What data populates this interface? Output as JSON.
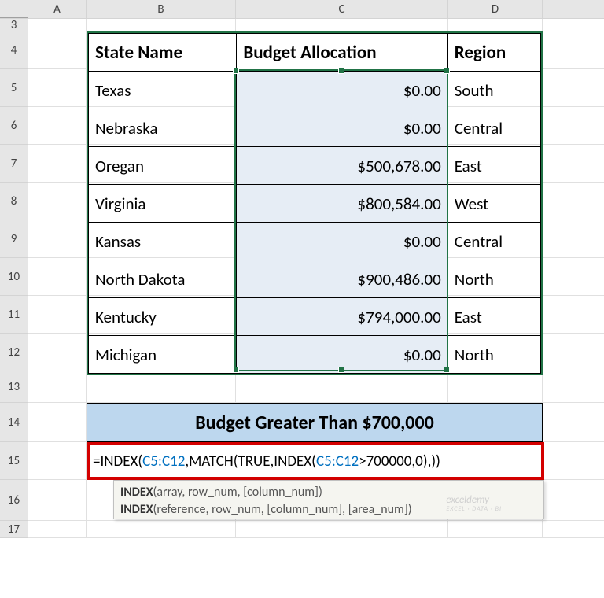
{
  "columns": {
    "A": "A",
    "B": "B",
    "C": "C",
    "D": "D"
  },
  "rownums": [
    "3",
    "4",
    "5",
    "6",
    "7",
    "8",
    "9",
    "10",
    "11",
    "12",
    "13",
    "14",
    "15",
    "16",
    "17"
  ],
  "table": {
    "headers": {
      "state": "State Name",
      "budget": "Budget Allocation",
      "region": "Region"
    },
    "rows": [
      {
        "state": "Texas",
        "budget": "$0.00",
        "region": "South"
      },
      {
        "state": "Nebraska",
        "budget": "$0.00",
        "region": "Central"
      },
      {
        "state": "Oregan",
        "budget": "$500,678.00",
        "region": "East"
      },
      {
        "state": "Virginia",
        "budget": "$800,584.00",
        "region": "West"
      },
      {
        "state": "Kansas",
        "budget": "$0.00",
        "region": "Central"
      },
      {
        "state": "North Dakota",
        "budget": "$900,486.00",
        "region": "North"
      },
      {
        "state": "Kentucky",
        "budget": "$794,000.00",
        "region": "East"
      },
      {
        "state": "Michigan",
        "budget": "$0.00",
        "region": "North"
      }
    ]
  },
  "title": "Budget Greater Than $700,000",
  "formula": {
    "eq": "=",
    "fn1": "INDEX",
    "ref1a": "C5:C12",
    "fn2": "MATCH",
    "true": "TRUE",
    "fn3": "INDEX",
    "ref1b": "C5:C12",
    "gt": ">700000,0",
    "tail": ",",
    "colors": {
      "ref_c5c12": "#0070c0",
      "ref_inner": "#0070c0",
      "highlight_border": "#d40000"
    }
  },
  "tooltip": {
    "line1_bold": "INDEX",
    "line1_rest": "(array, row_num, [column_num])",
    "line2_bold": "INDEX",
    "line2_rest": "(reference, row_num, [column_num], [area_num])"
  },
  "watermark": {
    "line1": "exceldemy",
    "line2": "EXCEL · DATA · BI"
  }
}
